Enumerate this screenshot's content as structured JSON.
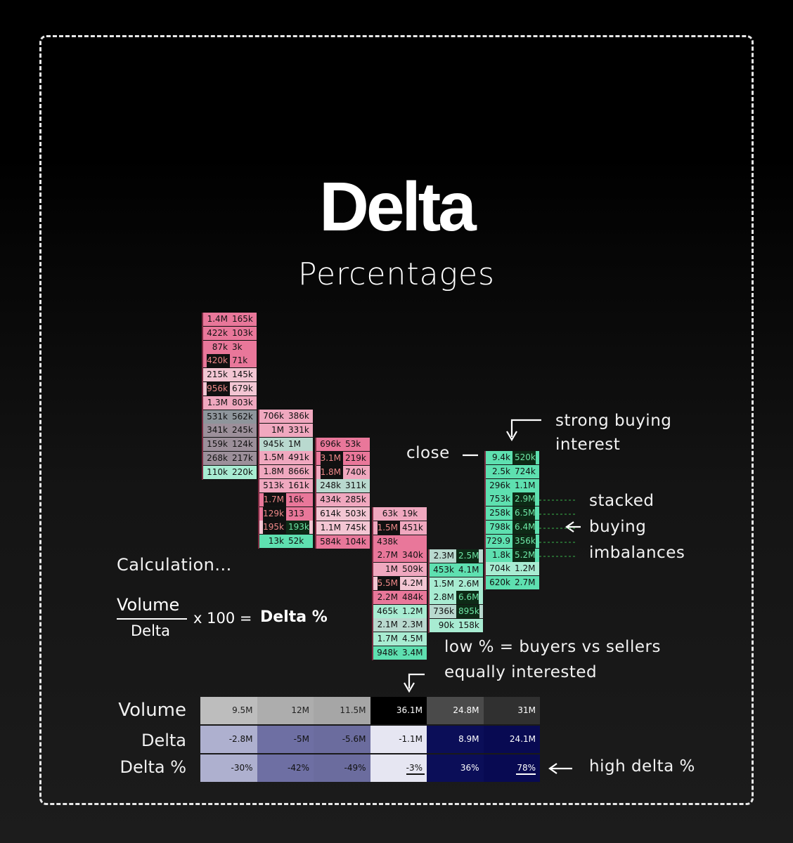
{
  "title": "Delta",
  "subtitle": "Percentages",
  "annotations": {
    "strong_buying": [
      "strong buying",
      "interest"
    ],
    "close": "close",
    "stacked": [
      "stacked",
      "buying",
      "imbalances"
    ],
    "calculation": "Calculation...",
    "formula_num": "Volume",
    "formula_den": "Delta",
    "formula_rest": "x 100 =",
    "formula_result": "Delta %",
    "low_pct": [
      "low % = buyers vs sellers",
      "equally interested"
    ],
    "high_pct": "high delta %"
  },
  "chart_data": [
    {
      "type": "table",
      "columns": [
        {
          "rows": [
            [
              "1.4M",
              "165k"
            ],
            [
              "422k",
              "103k"
            ],
            [
              "87k",
              "3k"
            ],
            [
              "420k",
              "71k"
            ],
            [
              "215k",
              "145k"
            ],
            [
              "956k",
              "679k"
            ],
            [
              "1.3M",
              "803k"
            ],
            [
              "531k",
              "562k"
            ],
            [
              "341k",
              "245k"
            ],
            [
              "159k",
              "124k"
            ],
            [
              "268k",
              "217k"
            ],
            [
              "110k",
              "220k"
            ]
          ]
        },
        {
          "rows": [
            [
              "706k",
              "386k"
            ],
            [
              "1M",
              "331k"
            ],
            [
              "945k",
              "1M"
            ],
            [
              "1.5M",
              "491k"
            ],
            [
              "1.8M",
              "866k"
            ],
            [
              "513k",
              "161k"
            ],
            [
              "1.7M",
              "16k"
            ],
            [
              "129k",
              "313"
            ],
            [
              "195k",
              "193k"
            ],
            [
              "13k",
              "52k"
            ]
          ]
        },
        {
          "rows": [
            [
              "696k",
              "53k"
            ],
            [
              "3.1M",
              "219k"
            ],
            [
              "1.8M",
              "740k"
            ],
            [
              "248k",
              "311k"
            ],
            [
              "434k",
              "285k"
            ],
            [
              "614k",
              "503k"
            ],
            [
              "1.1M",
              "745k"
            ],
            [
              "584k",
              "104k"
            ]
          ]
        },
        {
          "rows": [
            [
              "63k",
              "19k"
            ],
            [
              "1.5M",
              "451k"
            ],
            [
              "438k",
              ""
            ],
            [
              "2.7M",
              "340k"
            ],
            [
              "1M",
              "509k"
            ],
            [
              "5.5M",
              "4.2M"
            ],
            [
              "2.2M",
              "484k"
            ],
            [
              "465k",
              "1.2M"
            ],
            [
              "2.1M",
              "2.3M"
            ],
            [
              "1.7M",
              "4.5M"
            ],
            [
              "948k",
              "3.4M"
            ]
          ]
        },
        {
          "rows": [
            [
              "2.3M",
              "2.5M"
            ],
            [
              "453k",
              "4.1M"
            ],
            [
              "1.5M",
              "2.6M"
            ],
            [
              "2.8M",
              "6.6M"
            ],
            [
              "736k",
              "895k"
            ],
            [
              "90k",
              "158k"
            ]
          ]
        },
        {
          "rows": [
            [
              "9.4k",
              "520k"
            ],
            [
              "2.5k",
              "724k"
            ],
            [
              "296k",
              "1.1M"
            ],
            [
              "753k",
              "2.9M"
            ],
            [
              "258k",
              "6.5M"
            ],
            [
              "798k",
              "6.4M"
            ],
            [
              "729.9",
              "356k"
            ],
            [
              "1.8k",
              "5.2M"
            ],
            [
              "704k",
              "1.2M"
            ],
            [
              "620k",
              "2.7M"
            ]
          ]
        }
      ]
    },
    {
      "type": "table",
      "row_labels": [
        "Volume",
        "Delta",
        "Delta %"
      ],
      "volume": [
        "9.5M",
        "12M",
        "11.5M",
        "36.1M",
        "24.8M",
        "31M"
      ],
      "delta": [
        "-2.8M",
        "-5M",
        "-5.6M",
        "-1.1M",
        "8.9M",
        "24.1M"
      ],
      "delta_pct": [
        "-30%",
        "-42%",
        "-49%",
        "-3%",
        "36%",
        "78%"
      ]
    }
  ]
}
